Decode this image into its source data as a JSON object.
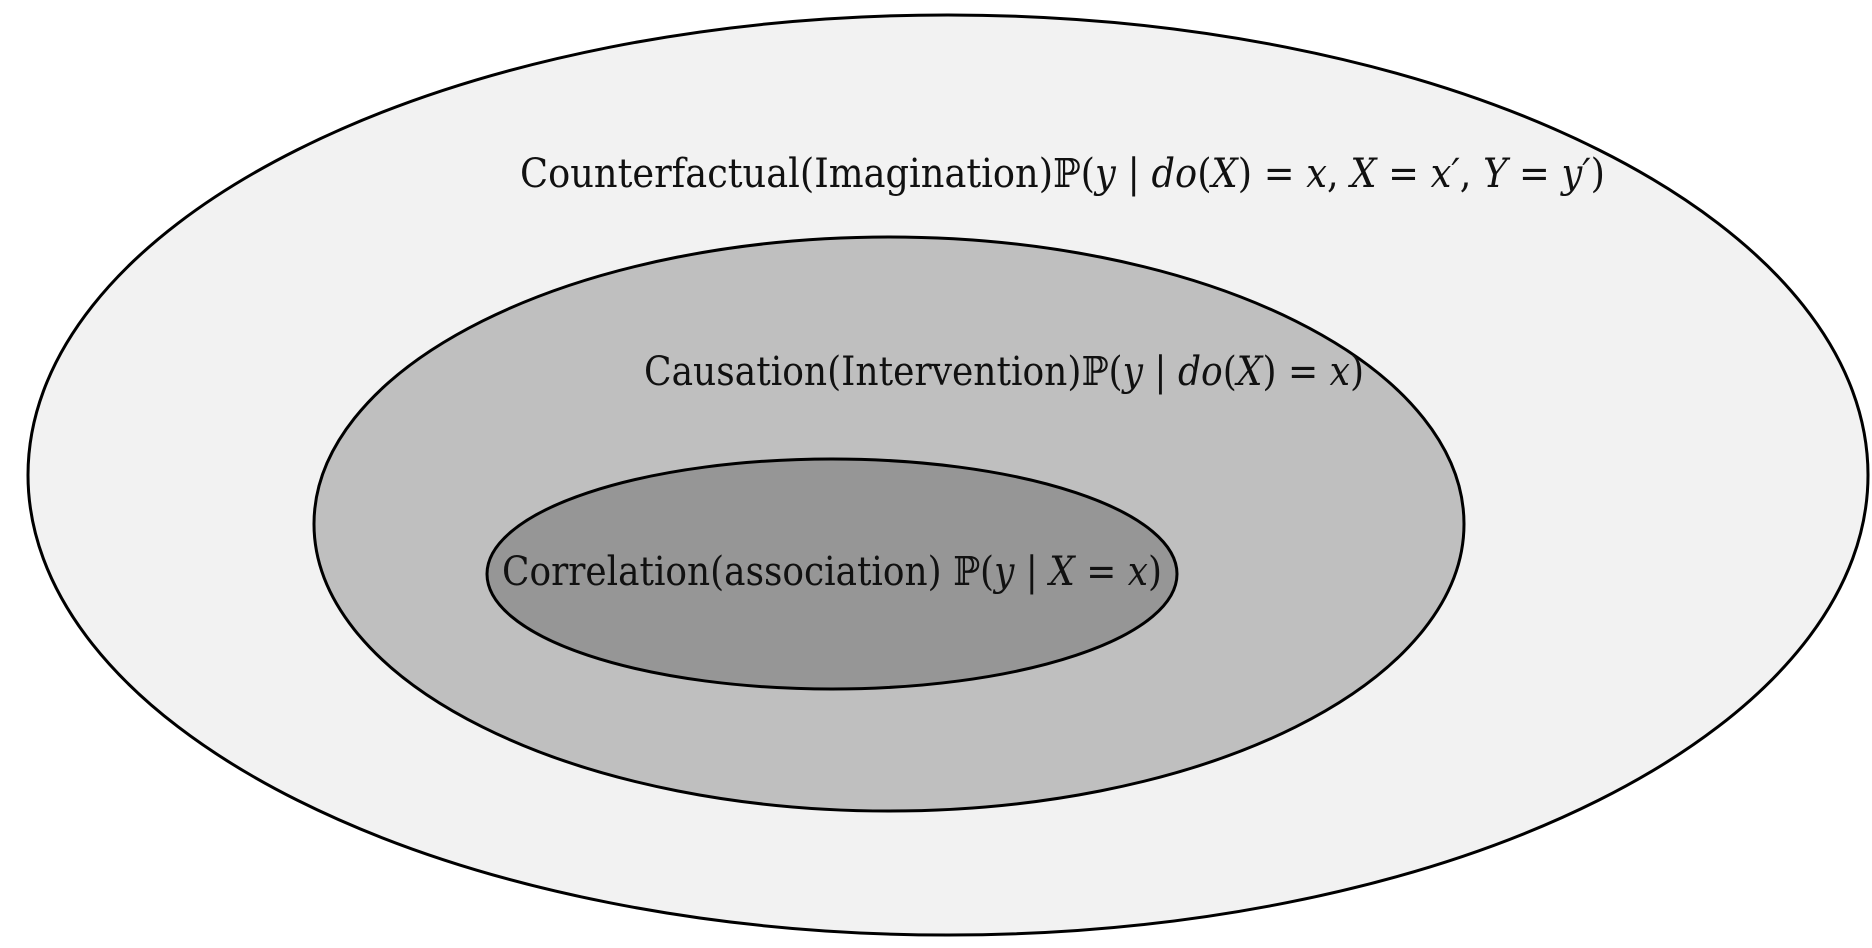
{
  "levels": [
    {
      "id": "counterfactual",
      "text": "Counterfactual(Imagination)",
      "formula": [
        {
          "t": "ℙ(",
          "i": false
        },
        {
          "t": "y",
          "i": true
        },
        {
          "t": " | ",
          "i": false
        },
        {
          "t": "do",
          "i": true
        },
        {
          "t": "(",
          "i": false
        },
        {
          "t": "X",
          "i": true
        },
        {
          "t": ") = ",
          "i": false
        },
        {
          "t": "x",
          "i": true
        },
        {
          "t": ", ",
          "i": false
        },
        {
          "t": "X",
          "i": true
        },
        {
          "t": " = ",
          "i": false
        },
        {
          "t": "x′",
          "i": true
        },
        {
          "t": ", ",
          "i": false
        },
        {
          "t": "Y",
          "i": true
        },
        {
          "t": " = ",
          "i": false
        },
        {
          "t": "y′",
          "i": true
        },
        {
          "t": ")",
          "i": false
        }
      ],
      "fill": "#f2f2f2"
    },
    {
      "id": "causation",
      "text": "Causation(Intervention)",
      "formula": [
        {
          "t": "ℙ(",
          "i": false
        },
        {
          "t": "y",
          "i": true
        },
        {
          "t": " | ",
          "i": false
        },
        {
          "t": "do",
          "i": true
        },
        {
          "t": "(",
          "i": false
        },
        {
          "t": "X",
          "i": true
        },
        {
          "t": ") = ",
          "i": false
        },
        {
          "t": "x",
          "i": true
        },
        {
          "t": ")",
          "i": false
        }
      ],
      "fill": "#bfbfbf"
    },
    {
      "id": "correlation",
      "text": "Correlation(association) ",
      "formula": [
        {
          "t": "ℙ(",
          "i": false
        },
        {
          "t": "y",
          "i": true
        },
        {
          "t": " | ",
          "i": false
        },
        {
          "t": "X",
          "i": true
        },
        {
          "t": " = ",
          "i": false
        },
        {
          "t": "x",
          "i": true
        },
        {
          "t": ")",
          "i": false
        }
      ],
      "fill": "#969696"
    }
  ]
}
